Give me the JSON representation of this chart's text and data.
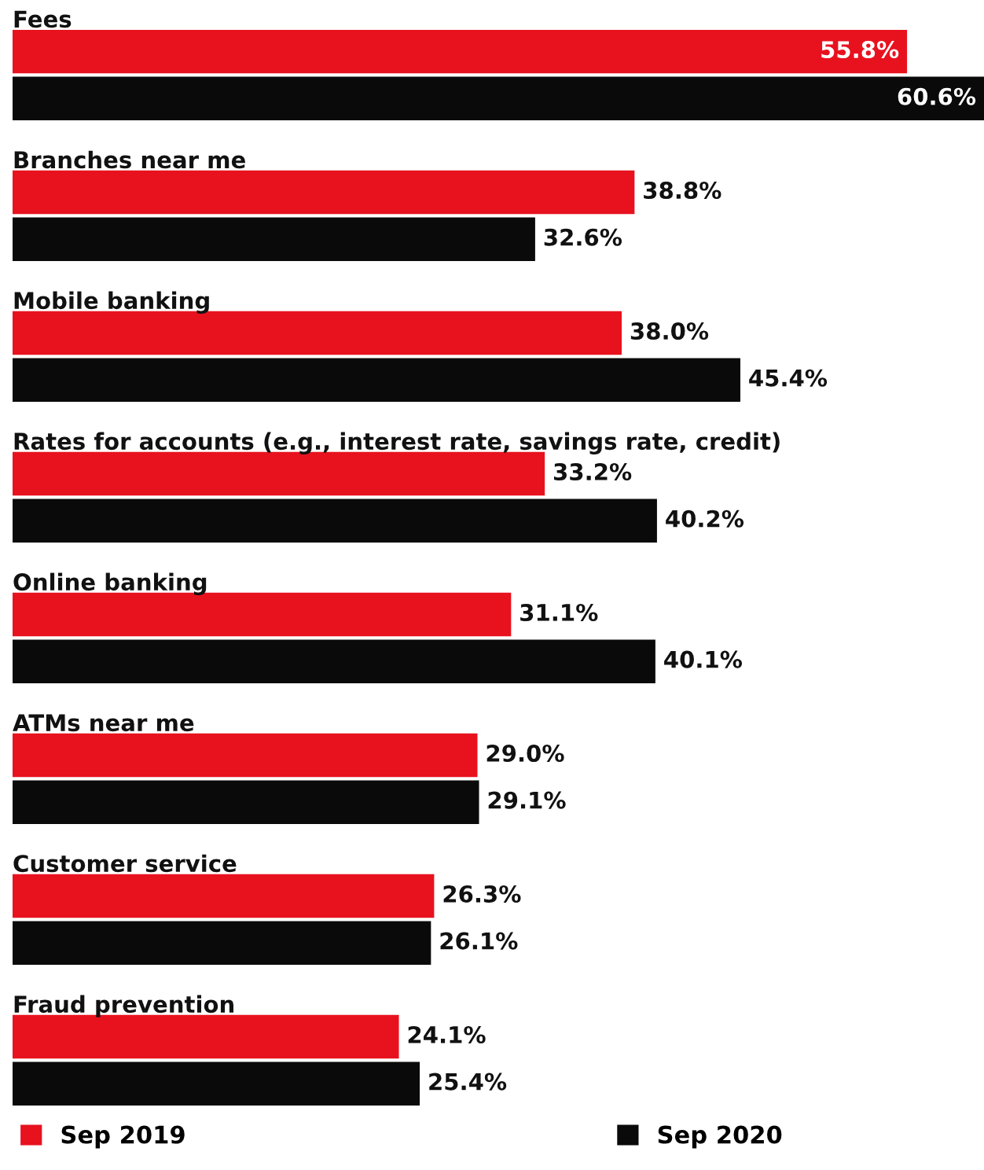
{
  "chart_data": {
    "type": "bar",
    "orientation": "horizontal",
    "categories": [
      "Fees",
      "Branches near me",
      "Mobile banking",
      "Rates for accounts (e.g., interest rate, savings rate, credit)",
      "Online banking",
      "ATMs near me",
      "Customer service",
      "Fraud prevention"
    ],
    "series": [
      {
        "name": "Sep 2019",
        "color": "#e8121f",
        "values": [
          55.8,
          38.8,
          38.0,
          33.2,
          31.1,
          29.0,
          26.3,
          24.1
        ],
        "value_labels": [
          "55.8%",
          "38.8%",
          "38.0%",
          "33.2%",
          "31.1%",
          "29.0%",
          "26.3%",
          "24.1%"
        ]
      },
      {
        "name": "Sep 2020",
        "color": "#0a0a0a",
        "values": [
          60.6,
          32.6,
          45.4,
          40.2,
          40.1,
          29.1,
          26.1,
          25.4
        ],
        "value_labels": [
          "60.6%",
          "32.6%",
          "45.4%",
          "40.2%",
          "40.1%",
          "29.1%",
          "26.1%",
          "25.4%"
        ]
      }
    ],
    "legend": "bottom"
  }
}
